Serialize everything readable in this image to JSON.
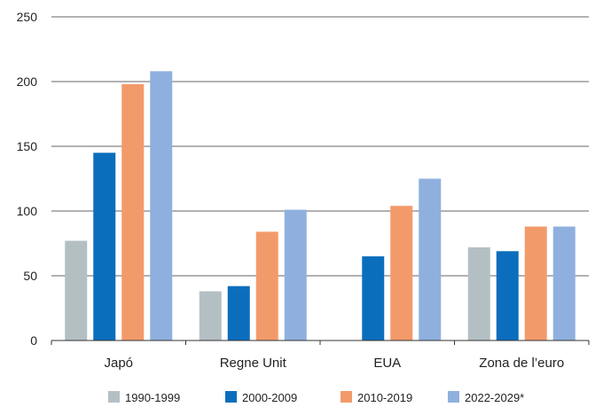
{
  "chart_data": {
    "type": "bar",
    "categories": [
      "Japó",
      "Regne Unit",
      "EUA",
      "Zona de l’euro"
    ],
    "series": [
      {
        "name": "1990-1999",
        "color": "#b4bfc4",
        "values": [
          77,
          38,
          null,
          72
        ]
      },
      {
        "name": "2000-2009",
        "color": "#0b6ebd",
        "values": [
          145,
          42,
          65,
          69
        ]
      },
      {
        "name": "2010-2019",
        "color": "#f39a6b",
        "values": [
          198,
          84,
          104,
          88
        ]
      },
      {
        "name": "2022-2029*",
        "color": "#8fb0de",
        "values": [
          208,
          101,
          125,
          88
        ]
      }
    ],
    "ylim": [
      0,
      250
    ],
    "yticks": [
      0,
      50,
      100,
      150,
      200,
      250
    ],
    "grid": true,
    "legend_position": "bottom",
    "title": "",
    "xlabel": "",
    "ylabel": ""
  }
}
